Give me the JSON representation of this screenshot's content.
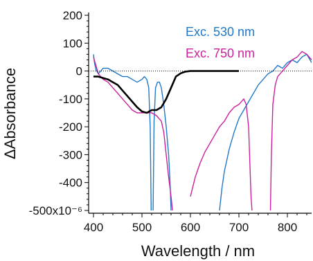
{
  "chart_data": {
    "type": "line",
    "xlabel": "Wavelength / nm",
    "ylabel": "ΔAbsorbance",
    "xlim": [
      390,
      850
    ],
    "ylim": [
      -0.00051,
      0.00021
    ],
    "x_ticks": [
      400,
      500,
      600,
      700,
      800
    ],
    "x_tick_labels": [
      "400",
      "500",
      "600",
      "700",
      "800"
    ],
    "y_ticks": [
      0.0002,
      0.0001,
      0,
      -0.0001,
      -0.0002,
      -0.0003,
      -0.0004,
      -0.0005
    ],
    "y_tick_labels": [
      "200",
      "100",
      "0",
      "-100",
      "-200",
      "-300",
      "-400",
      "-500x10⁻⁶"
    ],
    "grid": false,
    "zero_line": {
      "style": "dotted",
      "color": "#000000"
    },
    "legend": [
      {
        "label": "Exc. 530 nm",
        "color": "#1f78c8"
      },
      {
        "label": "Exc. 750 nm",
        "color": "#cc1f9e"
      }
    ],
    "series": [
      {
        "name": "Exc. 530 nm",
        "color": "#1f78c8",
        "segments": [
          {
            "x": [
              400,
              402,
              405,
              410,
              415,
              420,
              430,
              440,
              450,
              460,
              470,
              480,
              490,
              500,
              505,
              510,
              514,
              517,
              519
            ],
            "y": [
              6e-05,
              3e-05,
              5e-06,
              -1e-05,
              0.0,
              1e-05,
              1e-05,
              0.0,
              -1e-05,
              -2e-05,
              -2e-05,
              -3e-05,
              -4e-05,
              -3e-05,
              -2e-05,
              -3e-05,
              -6e-05,
              -0.0002,
              -0.0005
            ]
          },
          {
            "x": [
              523,
              525,
              528,
              532,
              536,
              540,
              545,
              550,
              555,
              558,
              560
            ],
            "y": [
              -0.0005,
              -0.00018,
              -6e-05,
              -4e-05,
              -4e-05,
              -6e-05,
              -0.00012,
              -0.0002,
              -0.0003,
              -0.0004,
              -0.0005
            ]
          },
          {
            "x": [
              660,
              665,
              670,
              680,
              690,
              700,
              710,
              720,
              730,
              740,
              750,
              760,
              770,
              780,
              790,
              800,
              810,
              820,
              830,
              840,
              850
            ],
            "y": [
              -0.0005,
              -0.00042,
              -0.00036,
              -0.00028,
              -0.00022,
              -0.00017,
              -0.00014,
              -0.00011,
              -8e-05,
              -5e-05,
              -3e-05,
              -1e-05,
              0.0,
              2e-05,
              1e-05,
              3e-05,
              4e-05,
              3e-05,
              5e-05,
              6e-05,
              3e-05
            ]
          }
        ]
      },
      {
        "name": "Exc. 750 nm",
        "color": "#cc1f9e",
        "segments": [
          {
            "x": [
              400,
              405,
              410,
              420,
              430,
              440,
              450,
              460,
              470,
              480,
              490,
              500,
              510,
              520,
              530,
              540,
              545,
              550,
              555,
              560,
              563
            ],
            "y": [
              5e-05,
              2e-05,
              -1e-05,
              -3e-05,
              -4e-05,
              -6e-05,
              -8e-05,
              -0.0001,
              -0.00012,
              -0.00014,
              -0.00015,
              -0.00015,
              -0.00015,
              -0.00015,
              -0.00016,
              -0.00018,
              -0.00022,
              -0.0003,
              -0.00038,
              -0.00045,
              -0.0005
            ]
          },
          {
            "x": [
              600,
              610,
              620,
              630,
              640,
              650,
              660,
              670,
              680,
              690,
              700,
              710,
              715,
              720,
              723,
              725,
              727
            ],
            "y": [
              -0.00045,
              -0.00038,
              -0.00033,
              -0.00029,
              -0.00026,
              -0.00023,
              -0.0002,
              -0.00018,
              -0.00015,
              -0.00013,
              -0.00012,
              -0.0001,
              -0.00012,
              -0.0002,
              -0.00035,
              -0.00045,
              -0.0005
            ]
          },
          {
            "x": [
              765,
              767,
              770,
              775,
              780,
              790,
              800,
              810,
              820,
              830,
              840,
              850
            ],
            "y": [
              -0.0005,
              -0.0003,
              -0.00012,
              -5e-05,
              -2e-05,
              0.0,
              2e-05,
              4e-05,
              5e-05,
              7e-05,
              6e-05,
              4e-05
            ]
          }
        ]
      },
      {
        "name": "",
        "color": "#000000",
        "segments": [
          {
            "x": [
              400,
              410,
              420,
              430,
              440,
              450,
              460,
              470,
              480,
              490,
              500,
              510,
              520,
              530,
              540,
              545,
              550,
              555,
              560,
              565,
              570,
              580,
              590,
              600,
              620,
              650,
              700
            ],
            "y": [
              -2e-05,
              -2e-05,
              -2.5e-05,
              -3e-05,
              -4e-05,
              -5e-05,
              -7e-05,
              -9e-05,
              -0.00011,
              -0.00013,
              -0.000145,
              -0.00015,
              -0.00014,
              -0.00014,
              -0.00013,
              -0.000115,
              -0.0001,
              -8e-05,
              -6e-05,
              -4e-05,
              -2e-05,
              -8e-06,
              -2e-06,
              0.0,
              0.0,
              0.0,
              0.0
            ]
          }
        ]
      }
    ]
  }
}
